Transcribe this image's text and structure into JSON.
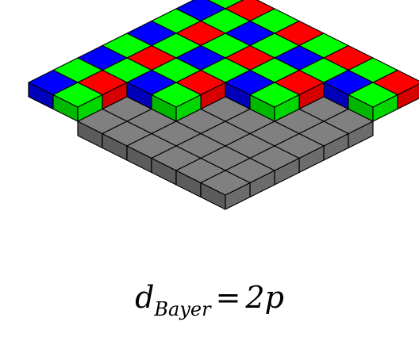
{
  "diagram": {
    "colors": {
      "red": "#ff0000",
      "green": "#00ff00",
      "blue": "#0000ff",
      "sensor": "#808080",
      "outline": "#000000"
    },
    "sensor_grid": {
      "rows": 8,
      "cols": 8
    },
    "bayer_pattern": [
      [
        "G",
        "R"
      ],
      [
        "B",
        "G"
      ]
    ],
    "filter_rows": [
      8,
      8,
      6,
      6,
      4,
      4,
      2,
      2
    ]
  },
  "formula": {
    "var": "d",
    "sub": "Bayer",
    "eq": "=",
    "rhs": "2p"
  }
}
